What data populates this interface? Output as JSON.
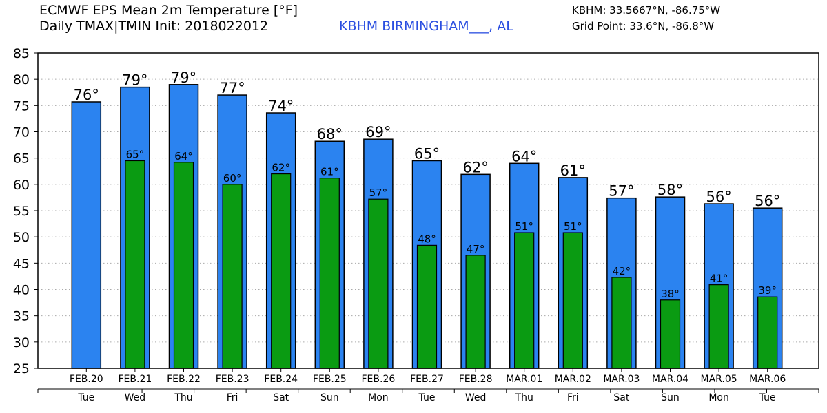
{
  "header": {
    "title_line1": "ECMWF EPS Mean 2m Temperature [°F]",
    "title_line2": "Daily TMAX|TMIN Init: 2018022012",
    "station": "KBHM BIRMINGHAM___, AL",
    "coords_line1": "KBHM: 33.5667°N, -86.75°W",
    "coords_line2": "Grid Point: 33.6°N, -86.8°W"
  },
  "colors": {
    "tmax_bar": "#2b83f0",
    "tmin_bar": "#0a9b12",
    "grid": "#aaaaaa"
  },
  "chart_data": {
    "type": "bar",
    "categories": [
      "FEB.20",
      "FEB.21",
      "FEB.22",
      "FEB.23",
      "FEB.24",
      "FEB.25",
      "FEB.26",
      "FEB.27",
      "FEB.28",
      "MAR.01",
      "MAR.02",
      "MAR.03",
      "MAR.04",
      "MAR.05",
      "MAR.06"
    ],
    "days": [
      "Tue",
      "Wed",
      "Thu",
      "Fri",
      "Sat",
      "Sun",
      "Mon",
      "Tue",
      "Wed",
      "Thu",
      "Fri",
      "Sat",
      "Sun",
      "Mon",
      "Tue"
    ],
    "series": [
      {
        "name": "TMAX",
        "values": [
          75.7,
          78.5,
          79.0,
          77.0,
          73.6,
          68.2,
          68.6,
          64.5,
          61.9,
          64.0,
          61.3,
          57.4,
          57.6,
          56.3,
          55.5
        ],
        "labels": [
          "76°",
          "79°",
          "79°",
          "77°",
          "74°",
          "68°",
          "69°",
          "65°",
          "62°",
          "64°",
          "61°",
          "57°",
          "58°",
          "56°",
          "56°"
        ]
      },
      {
        "name": "TMIN",
        "values": [
          null,
          64.5,
          64.2,
          60.0,
          62.0,
          61.2,
          57.2,
          48.4,
          46.5,
          50.8,
          50.8,
          42.3,
          38.0,
          40.9,
          38.6
        ],
        "labels": [
          "",
          "65°",
          "64°",
          "60°",
          "62°",
          "61°",
          "57°",
          "48°",
          "47°",
          "51°",
          "51°",
          "42°",
          "38°",
          "41°",
          "39°"
        ]
      }
    ],
    "ylim": [
      25,
      85
    ],
    "yticks": [
      25,
      30,
      35,
      40,
      45,
      50,
      55,
      60,
      65,
      70,
      75,
      80,
      85
    ],
    "grid": true,
    "xlabel": "",
    "ylabel": ""
  }
}
